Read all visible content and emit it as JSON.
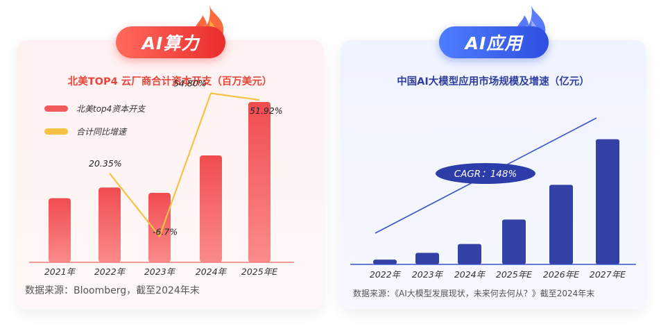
{
  "left_panel": {
    "badge": "AI算力",
    "source": "数据来源：Bloomberg，截至2024年末",
    "chart_data": {
      "type": "bar",
      "title": "北美TOP4 云厂商合计资本开支（百万美元）",
      "categories": [
        "2021年",
        "2022年",
        "2023年",
        "2024年",
        "2025年E"
      ],
      "series": [
        {
          "name": "北美top4资本开支",
          "type": "bar",
          "color": "#f2595b",
          "values": [
            120,
            140,
            130,
            200,
            300
          ]
        },
        {
          "name": "合计同比增速",
          "type": "line",
          "color": "#f7c143",
          "values": [
            null,
            20.35,
            -6.7,
            54.8,
            51.92
          ],
          "labels": [
            "",
            "20.35%",
            "-6.7%",
            "54.80%",
            "51.92%"
          ]
        }
      ],
      "legend_position": "top-left",
      "grid": false
    }
  },
  "right_panel": {
    "badge": "AI应用",
    "source": "数据来源：《AI大模型发展现状，未来何去何从？》截至2024年末",
    "chart_data": {
      "type": "bar",
      "title": "中国AI大模型应用市场规模及增速（亿元）",
      "categories": [
        "2022年",
        "2023年",
        "2024年",
        "2025年E",
        "2026年E",
        "2027年E"
      ],
      "values": [
        7,
        17,
        30,
        66,
        117,
        184
      ],
      "color": "#3340a4",
      "annotation": "CAGR：148%",
      "grid": false
    }
  }
}
